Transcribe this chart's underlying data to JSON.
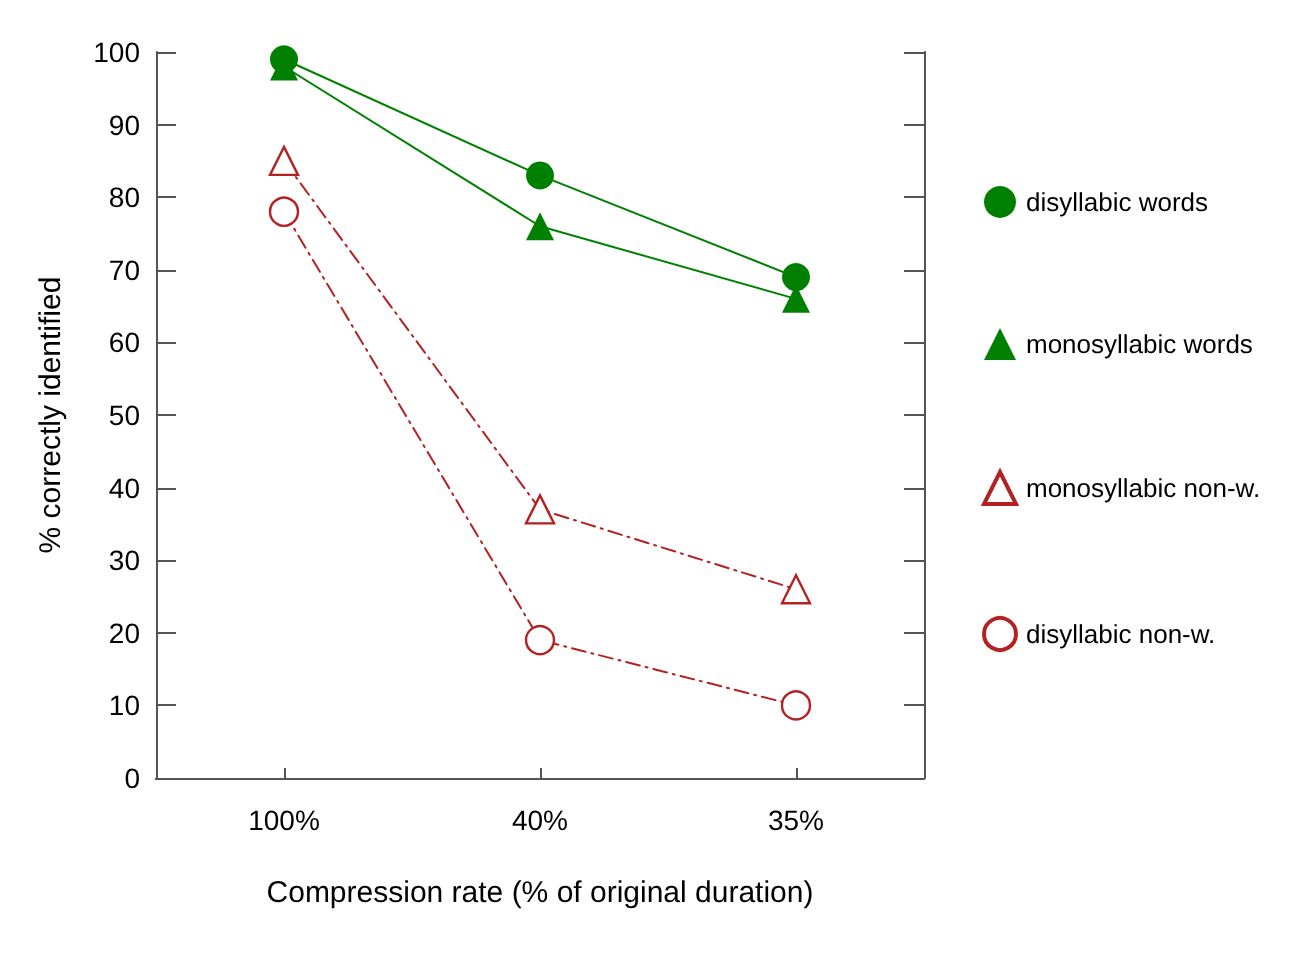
{
  "chart_data": {
    "type": "line",
    "xlabel": "Compression rate (% of original duration)",
    "ylabel": "% correctly identified",
    "categories": [
      "100%",
      "40%",
      "35%"
    ],
    "series": [
      {
        "name": "disyllabic words",
        "color": "#008000",
        "marker": "circle",
        "line_style": "solid",
        "values": [
          99,
          83,
          69
        ]
      },
      {
        "name": "monosyllabic words",
        "color": "#008000",
        "marker": "triangle",
        "line_style": "solid",
        "values": [
          98,
          76,
          66
        ]
      },
      {
        "name": "monosyllabic non-w.",
        "color": "#b22222",
        "marker": "triangle",
        "line_style": "dashed",
        "values": [
          85,
          37,
          26
        ]
      },
      {
        "name": "disyllabic non-w.",
        "color": "#b22222",
        "marker": "circle",
        "line_style": "dashed",
        "values": [
          78,
          19,
          10
        ]
      }
    ],
    "ylim": [
      0,
      100
    ],
    "yticks": [
      0,
      10,
      20,
      30,
      40,
      50,
      60,
      70,
      80,
      90,
      100
    ],
    "grid": false,
    "legend": "right"
  }
}
